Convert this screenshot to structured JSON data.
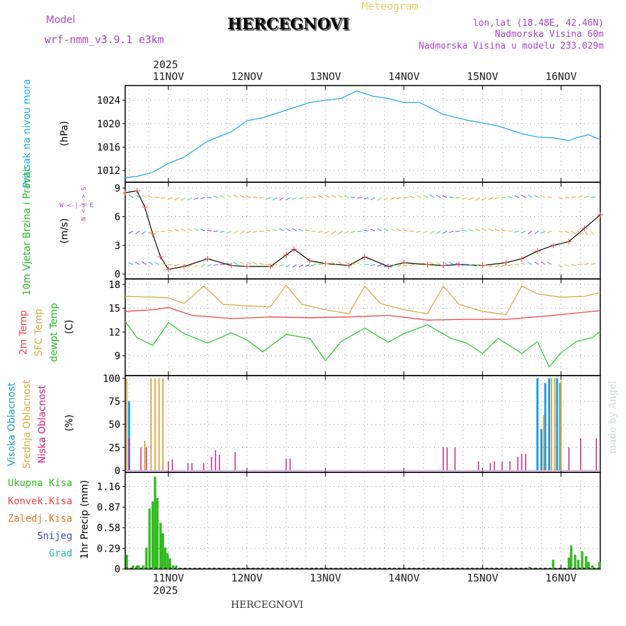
{
  "header": {
    "model_label": "Model",
    "model_name": "wrf-nmm_v3.9.1 e3km",
    "chart_kind": "Meteogram",
    "station": "HERCEGNOVI",
    "lonlat": "lon,lat (18.48E, 42.46N)",
    "altitude": "Nadmorska Visina 60m",
    "model_altitude": "Nadmorska Visina u modelu 233.029m",
    "footer_station": "HERCEGNOVI",
    "watermark": "made by Angel"
  },
  "time_axis": {
    "year_top": "2025",
    "year_bottom": "2025",
    "day_labels": [
      "11NOV",
      "12NOV",
      "13NOV",
      "14NOV",
      "15NOV",
      "16NOV"
    ]
  },
  "colors": {
    "pressure": "#22aaee",
    "t2m": "#ee4444",
    "tsfc": "#ddaa44",
    "dewpt": "#33cc33",
    "cloud_high": "#2299dd",
    "cloud_mid": "#ddaa44",
    "cloud_low": "#cc2288",
    "precip_total": "#33bb22"
  },
  "chart_data": [
    {
      "type": "line",
      "name": "pressure",
      "title": "Pritisak na nivou mora",
      "ylabel": "(hPa)",
      "ylim": [
        1010,
        1026.5
      ],
      "yticks": [
        "1012",
        "1016",
        "1020",
        "1024"
      ],
      "x_days": [
        0.45,
        0.6,
        0.8,
        1.0,
        1.2,
        1.5,
        1.8,
        2.0,
        2.2,
        2.5,
        2.8,
        3.0,
        3.2,
        3.4,
        3.6,
        3.8,
        4.0,
        4.2,
        4.5,
        4.8,
        5.0,
        5.2,
        5.5,
        5.7,
        5.9,
        6.1,
        6.2,
        6.35,
        6.5
      ],
      "values": [
        1010.8,
        1011.0,
        1011.7,
        1013.2,
        1014.3,
        1017.0,
        1018.6,
        1020.5,
        1021.0,
        1022.3,
        1023.6,
        1024.0,
        1024.3,
        1025.6,
        1024.7,
        1024.3,
        1023.6,
        1023.6,
        1021.6,
        1020.6,
        1020.1,
        1019.6,
        1018.3,
        1017.7,
        1017.6,
        1017.1,
        1017.6,
        1018.1,
        1017.3
      ]
    },
    {
      "type": "line",
      "name": "wind",
      "title": "10m Vjetar Brzina i Pravac",
      "ylabel": "(m/s)",
      "ylim": [
        -0.5,
        9.6
      ],
      "yticks": [
        "0",
        "3",
        "6",
        "9"
      ],
      "direction_legend": "W <-|-> E",
      "direction_legend_vertical": "N <-|-> S",
      "x_days": [
        0.45,
        0.6,
        0.7,
        0.8,
        0.9,
        1.0,
        1.2,
        1.5,
        1.8,
        2.0,
        2.3,
        2.5,
        2.6,
        2.8,
        3.0,
        3.3,
        3.5,
        3.8,
        4.0,
        4.3,
        4.5,
        4.7,
        5.0,
        5.3,
        5.5,
        5.7,
        5.9,
        6.1,
        6.3,
        6.5
      ],
      "values": [
        8.5,
        8.7,
        7.0,
        4.2,
        1.8,
        0.5,
        0.8,
        1.6,
        0.9,
        0.8,
        0.8,
        2.0,
        2.6,
        1.4,
        1.1,
        0.9,
        1.8,
        0.8,
        1.2,
        1.0,
        0.9,
        1.0,
        0.9,
        1.2,
        1.6,
        2.4,
        3.0,
        3.4,
        4.8,
        6.2
      ]
    },
    {
      "type": "line",
      "name": "temperature",
      "title": "2m Temp / SFC Temp / dewpt Temp",
      "ylabel": "(C)",
      "ylim": [
        6.5,
        18.7
      ],
      "yticks": [
        "9",
        "12",
        "15",
        "18"
      ],
      "series": [
        {
          "name": "2m Temp",
          "x_days": [
            0.45,
            0.8,
            1.0,
            1.3,
            1.8,
            2.3,
            2.8,
            3.3,
            3.8,
            4.3,
            4.8,
            5.3,
            5.8,
            6.3,
            6.5
          ],
          "values": [
            14.6,
            14.8,
            15.1,
            14.1,
            13.7,
            13.9,
            13.8,
            13.9,
            14.1,
            13.5,
            13.6,
            13.6,
            14.0,
            14.5,
            14.7
          ]
        },
        {
          "name": "SFC Temp",
          "x_days": [
            0.45,
            0.8,
            1.0,
            1.2,
            1.45,
            1.7,
            2.0,
            2.3,
            2.5,
            2.7,
            3.0,
            3.3,
            3.5,
            3.7,
            4.0,
            4.3,
            4.5,
            4.7,
            5.0,
            5.3,
            5.5,
            5.7,
            6.0,
            6.3,
            6.5
          ],
          "values": [
            16.5,
            16.4,
            16.3,
            15.6,
            17.8,
            15.5,
            15.3,
            15.2,
            17.9,
            15.5,
            14.8,
            14.3,
            17.8,
            15.6,
            14.8,
            14.3,
            17.8,
            15.5,
            14.6,
            14.2,
            17.8,
            16.8,
            16.4,
            16.5,
            17.0
          ]
        },
        {
          "name": "dewpt Temp",
          "x_days": [
            0.45,
            0.6,
            0.8,
            1.0,
            1.2,
            1.5,
            1.8,
            2.0,
            2.2,
            2.5,
            2.8,
            3.0,
            3.2,
            3.5,
            3.8,
            4.0,
            4.3,
            4.6,
            4.8,
            5.0,
            5.2,
            5.5,
            5.7,
            5.85,
            6.0,
            6.2,
            6.4,
            6.5
          ],
          "values": [
            13.3,
            11.3,
            10.3,
            13.2,
            11.8,
            10.6,
            11.9,
            11.0,
            9.5,
            11.7,
            11.2,
            8.4,
            10.8,
            12.5,
            10.7,
            11.8,
            12.9,
            11.2,
            10.6,
            9.3,
            11.2,
            9.3,
            10.8,
            7.6,
            9.4,
            10.8,
            11.3,
            12.1
          ]
        }
      ]
    },
    {
      "type": "bar",
      "name": "cloud_cover",
      "title": "Visoka / Srednja / Niska Oblacnost",
      "ylabel": "(%)",
      "ylim": [
        -2,
        103
      ],
      "yticks": [
        "0",
        "25",
        "50",
        "75",
        "100"
      ],
      "series": [
        {
          "name": "Visoka Oblacnost",
          "bars": [
            [
              0.5,
              75
            ],
            [
              5.7,
              100
            ],
            [
              5.75,
              45
            ],
            [
              5.8,
              95
            ],
            [
              5.85,
              100
            ],
            [
              5.95,
              100
            ],
            [
              5.99,
              95
            ]
          ]
        },
        {
          "name": "Srednja Oblacnost",
          "bars": [
            [
              0.47,
              100
            ],
            [
              0.7,
              32
            ],
            [
              0.78,
              100
            ],
            [
              0.83,
              100
            ],
            [
              0.88,
              100
            ],
            [
              0.93,
              100
            ],
            [
              5.78,
              60
            ],
            [
              5.88,
              100
            ],
            [
              5.92,
              100
            ],
            [
              6.0,
              97
            ]
          ]
        },
        {
          "name": "Niska Oblacnost",
          "bars": [
            [
              0.5,
              35
            ],
            [
              0.65,
              25
            ],
            [
              0.72,
              25
            ],
            [
              1.0,
              10
            ],
            [
              1.05,
              12
            ],
            [
              1.25,
              8
            ],
            [
              1.3,
              8
            ],
            [
              1.45,
              8
            ],
            [
              1.55,
              15
            ],
            [
              1.6,
              22
            ],
            [
              1.65,
              17
            ],
            [
              1.85,
              20
            ],
            [
              2.5,
              13
            ],
            [
              2.55,
              13
            ],
            [
              4.5,
              25
            ],
            [
              4.55,
              25
            ],
            [
              4.65,
              25
            ],
            [
              4.95,
              10
            ],
            [
              5.1,
              8
            ],
            [
              5.15,
              10
            ],
            [
              5.25,
              10
            ],
            [
              5.35,
              10
            ],
            [
              5.45,
              15
            ],
            [
              5.5,
              18
            ],
            [
              5.55,
              18
            ],
            [
              6.1,
              25
            ],
            [
              6.25,
              35
            ],
            [
              6.45,
              35
            ]
          ]
        }
      ]
    },
    {
      "type": "bar",
      "name": "precipitation",
      "title": "1hr Precip",
      "ylabel": "1hr Precip (mm)",
      "ylim": [
        0,
        1.36
      ],
      "yticks": [
        "0",
        "0.29",
        "0.58",
        "0.87",
        "1.16"
      ],
      "legend": [
        "Ukupna Kisa",
        "Konvek.Kisa",
        "Zaledj.Kisa",
        "Snijeg",
        "Grad"
      ],
      "bars": [
        [
          0.47,
          0.2
        ],
        [
          0.55,
          0.05
        ],
        [
          0.6,
          0.05
        ],
        [
          0.62,
          0.05
        ],
        [
          0.68,
          0.05
        ],
        [
          0.72,
          0.3
        ],
        [
          0.76,
          0.85
        ],
        [
          0.8,
          0.95
        ],
        [
          0.83,
          1.3
        ],
        [
          0.86,
          1.0
        ],
        [
          0.9,
          0.65
        ],
        [
          0.93,
          0.5
        ],
        [
          0.96,
          0.3
        ],
        [
          0.99,
          0.22
        ],
        [
          1.02,
          0.15
        ],
        [
          1.06,
          0.05
        ],
        [
          1.1,
          0.05
        ],
        [
          5.6,
          0.03
        ],
        [
          5.9,
          0.13
        ],
        [
          6.1,
          0.16
        ],
        [
          6.13,
          0.33
        ],
        [
          6.18,
          0.2
        ],
        [
          6.22,
          0.13
        ],
        [
          6.27,
          0.25
        ],
        [
          6.32,
          0.18
        ],
        [
          6.35,
          0.1
        ],
        [
          6.4,
          0.05
        ],
        [
          6.49,
          0.1
        ]
      ]
    }
  ]
}
